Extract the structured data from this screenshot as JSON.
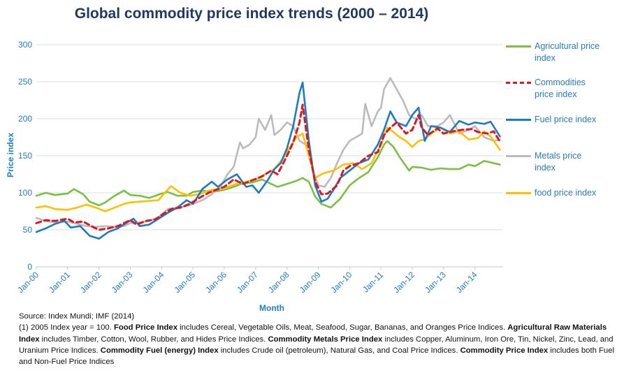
{
  "chart_data": {
    "type": "line",
    "title": "Global commodity price index trends (2000 – 2014)",
    "xlabel": "Month",
    "ylabel": "Price index",
    "ylim": [
      0,
      300
    ],
    "yticks": [
      0,
      50,
      100,
      150,
      200,
      250,
      300
    ],
    "grid": true,
    "legend_position": "right",
    "x_tick_labels": [
      "Jan-00",
      "Jan-01",
      "Jan-02",
      "Jan-03",
      "Jan-04",
      "Jan-05",
      "Jan-06",
      "Jan-07",
      "Jan-08",
      "Jan-09",
      "Jan-10",
      "Jan-11",
      "Jan-12",
      "Jan-13",
      "Jan-14"
    ],
    "x_start": 2000.0,
    "x_end": 2014.9,
    "series": [
      {
        "name": "Agricultural price index",
        "legend_label": [
          "Agricultural price",
          "index"
        ],
        "color": "#7ac143",
        "dash": "solid",
        "x": [
          2000.0,
          2000.3,
          2000.6,
          2001.0,
          2001.2,
          2001.5,
          2001.7,
          2002.0,
          2002.2,
          2002.5,
          2002.8,
          2003.0,
          2003.3,
          2003.6,
          2004.0,
          2004.2,
          2004.5,
          2004.8,
          2005.0,
          2005.3,
          2005.6,
          2006.0,
          2006.3,
          2006.6,
          2006.9,
          2007.2,
          2007.5,
          2007.7,
          2008.0,
          2008.3,
          2008.5,
          2008.7,
          2008.9,
          2009.1,
          2009.4,
          2009.7,
          2010.0,
          2010.3,
          2010.6,
          2010.9,
          2011.1,
          2011.2,
          2011.4,
          2011.6,
          2011.9,
          2012.0,
          2012.3,
          2012.6,
          2012.9,
          2013.2,
          2013.5,
          2013.8,
          2014.0,
          2014.3,
          2014.6,
          2014.8
        ],
        "values": [
          96,
          100,
          97,
          99,
          105,
          98,
          88,
          83,
          87,
          96,
          103,
          97,
          96,
          93,
          99,
          101,
          96,
          96,
          101,
          103,
          101,
          104,
          108,
          113,
          114,
          118,
          112,
          108,
          112,
          116,
          120,
          115,
          95,
          85,
          80,
          92,
          110,
          120,
          128,
          148,
          165,
          170,
          162,
          148,
          130,
          135,
          134,
          131,
          133,
          132,
          132,
          138,
          136,
          143,
          140,
          138
        ]
      },
      {
        "name": "Commodities price index",
        "legend_label": [
          "Commodities",
          "price index"
        ],
        "color": "#e0161f",
        "dash": "dashed",
        "x": [
          2000.0,
          2000.3,
          2000.6,
          2001.0,
          2001.2,
          2001.5,
          2001.8,
          2002.0,
          2002.3,
          2002.6,
          2003.0,
          2003.2,
          2003.5,
          2003.8,
          2004.0,
          2004.3,
          2004.6,
          2004.9,
          2005.2,
          2005.5,
          2005.8,
          2006.0,
          2006.3,
          2006.6,
          2006.9,
          2007.2,
          2007.5,
          2007.7,
          2008.0,
          2008.2,
          2008.4,
          2008.5,
          2008.7,
          2008.9,
          2009.1,
          2009.3,
          2009.6,
          2009.8,
          2010.0,
          2010.3,
          2010.6,
          2010.9,
          2011.1,
          2011.3,
          2011.5,
          2011.8,
          2012.0,
          2012.2,
          2012.3,
          2012.5,
          2012.8,
          2013.0,
          2013.3,
          2013.6,
          2013.9,
          2014.1,
          2014.4,
          2014.6,
          2014.8
        ],
        "values": [
          59,
          63,
          62,
          65,
          60,
          61,
          54,
          50,
          52,
          55,
          63,
          57,
          62,
          64,
          70,
          78,
          80,
          85,
          93,
          100,
          105,
          108,
          118,
          112,
          117,
          122,
          130,
          125,
          150,
          168,
          195,
          219,
          158,
          115,
          98,
          99,
          110,
          130,
          136,
          140,
          150,
          155,
          178,
          188,
          195,
          180,
          185,
          205,
          188,
          178,
          187,
          180,
          183,
          185,
          186,
          182,
          180,
          183,
          169
        ]
      },
      {
        "name": "Fuel price index",
        "legend_label": [
          "Fuel price index"
        ],
        "color": "#1a7cc8",
        "dash": "solid",
        "x": [
          2000.0,
          2000.3,
          2000.6,
          2000.9,
          2001.1,
          2001.4,
          2001.7,
          2002.0,
          2002.3,
          2002.6,
          2002.9,
          2003.1,
          2003.3,
          2003.6,
          2003.9,
          2004.2,
          2004.5,
          2004.8,
          2005.0,
          2005.3,
          2005.6,
          2005.8,
          2006.1,
          2006.4,
          2006.7,
          2006.9,
          2007.1,
          2007.4,
          2007.6,
          2007.8,
          2008.0,
          2008.2,
          2008.4,
          2008.5,
          2008.7,
          2008.9,
          2009.1,
          2009.3,
          2009.5,
          2009.7,
          2010.0,
          2010.3,
          2010.6,
          2010.9,
          2011.1,
          2011.3,
          2011.5,
          2011.8,
          2012.0,
          2012.2,
          2012.4,
          2012.6,
          2012.9,
          2013.2,
          2013.5,
          2013.8,
          2014.0,
          2014.3,
          2014.5,
          2014.8
        ],
        "values": [
          47,
          52,
          58,
          62,
          53,
          55,
          42,
          38,
          47,
          52,
          60,
          65,
          55,
          57,
          65,
          73,
          80,
          90,
          85,
          105,
          115,
          108,
          118,
          125,
          108,
          110,
          100,
          118,
          132,
          140,
          160,
          190,
          235,
          249,
          170,
          110,
          88,
          92,
          105,
          120,
          130,
          140,
          145,
          165,
          185,
          210,
          195,
          190,
          205,
          215,
          170,
          190,
          188,
          182,
          197,
          192,
          195,
          193,
          196,
          176
        ]
      },
      {
        "name": "Metals price index",
        "legend_label": [
          "Metals price",
          "index"
        ],
        "color": "#bbbbbb",
        "dash": "solid",
        "x": [
          2000.0,
          2000.3,
          2000.6,
          2001.0,
          2001.3,
          2001.6,
          2001.9,
          2002.2,
          2002.5,
          2002.8,
          2003.0,
          2003.3,
          2003.6,
          2003.9,
          2004.2,
          2004.5,
          2004.8,
          2005.0,
          2005.3,
          2005.6,
          2005.9,
          2006.1,
          2006.3,
          2006.5,
          2006.6,
          2006.8,
          2007.0,
          2007.1,
          2007.3,
          2007.5,
          2007.6,
          2007.8,
          2008.0,
          2008.2,
          2008.4,
          2008.6,
          2008.8,
          2009.0,
          2009.2,
          2009.4,
          2009.6,
          2009.8,
          2010.0,
          2010.2,
          2010.4,
          2010.5,
          2010.7,
          2010.9,
          2011.0,
          2011.1,
          2011.3,
          2011.5,
          2011.7,
          2011.9,
          2012.1,
          2012.3,
          2012.5,
          2012.8,
          2013.0,
          2013.2,
          2013.5,
          2013.8,
          2014.0,
          2014.3,
          2014.6,
          2014.8
        ],
        "values": [
          66,
          62,
          60,
          61,
          58,
          55,
          54,
          55,
          54,
          55,
          59,
          60,
          62,
          67,
          78,
          80,
          82,
          85,
          90,
          98,
          110,
          125,
          135,
          168,
          160,
          165,
          175,
          200,
          185,
          205,
          178,
          185,
          195,
          190,
          170,
          165,
          135,
          110,
          108,
          120,
          140,
          158,
          170,
          175,
          180,
          220,
          190,
          210,
          215,
          240,
          255,
          240,
          225,
          205,
          200,
          205,
          190,
          190,
          195,
          205,
          180,
          185,
          190,
          175,
          170,
          172
        ]
      },
      {
        "name": "food price index",
        "legend_label": [
          "food price index"
        ],
        "color": "#ffc000",
        "dash": "solid",
        "x": [
          2000.0,
          2000.3,
          2000.6,
          2001.0,
          2001.3,
          2001.6,
          2001.9,
          2002.2,
          2002.5,
          2002.8,
          2003.0,
          2003.3,
          2003.6,
          2003.9,
          2004.1,
          2004.3,
          2004.6,
          2004.9,
          2005.2,
          2005.5,
          2005.8,
          2006.1,
          2006.4,
          2006.7,
          2007.0,
          2007.3,
          2007.6,
          2007.9,
          2008.1,
          2008.3,
          2008.5,
          2008.7,
          2008.9,
          2009.1,
          2009.3,
          2009.5,
          2009.8,
          2010.1,
          2010.4,
          2010.7,
          2011.0,
          2011.2,
          2011.4,
          2011.6,
          2011.8,
          2012.0,
          2012.2,
          2012.4,
          2012.6,
          2012.9,
          2013.2,
          2013.5,
          2013.8,
          2014.1,
          2014.3,
          2014.5,
          2014.8
        ],
        "values": [
          80,
          82,
          78,
          77,
          80,
          84,
          80,
          75,
          80,
          85,
          87,
          88,
          89,
          90,
          100,
          109,
          100,
          96,
          98,
          103,
          105,
          108,
          112,
          115,
          118,
          125,
          132,
          148,
          162,
          175,
          180,
          150,
          120,
          125,
          128,
          130,
          138,
          140,
          132,
          140,
          165,
          188,
          182,
          175,
          170,
          162,
          170,
          172,
          180,
          188,
          180,
          183,
          172,
          174,
          183,
          176,
          158
        ]
      }
    ]
  },
  "source_note": {
    "line1": "Source:  Index Mundi; IMF (2014)",
    "segments": [
      {
        "text": "(1) 2005 Index year = 100. ",
        "bold": false
      },
      {
        "text": "Food Price Index",
        "bold": true
      },
      {
        "text": " includes Cereal, Vegetable Oils, Meat, Seafood, Sugar, Bananas, and Oranges Price Indices. ",
        "bold": false
      },
      {
        "text": "Agricultural Raw Materials  Index",
        "bold": true
      },
      {
        "text": " includes Timber, Cotton, Wool, Rubber, and Hides Price Indices. ",
        "bold": false
      },
      {
        "text": "Commodity Metals Price Index",
        "bold": true
      },
      {
        "text": " includes Copper, Aluminum, Iron Ore, Tin, Nickel, Zinc, Lead, and Uranium Price Indices. ",
        "bold": false
      },
      {
        "text": "Commodity Fuel (energy) Index",
        "bold": true
      },
      {
        "text": " includes Crude oil (petroleum), Natural Gas, and Coal Price Indices. ",
        "bold": false
      },
      {
        "text": "Commodity Price Index",
        "bold": true
      },
      {
        "text": " includes both Fuel and Non-Fuel  Price Indices",
        "bold": false
      }
    ]
  }
}
